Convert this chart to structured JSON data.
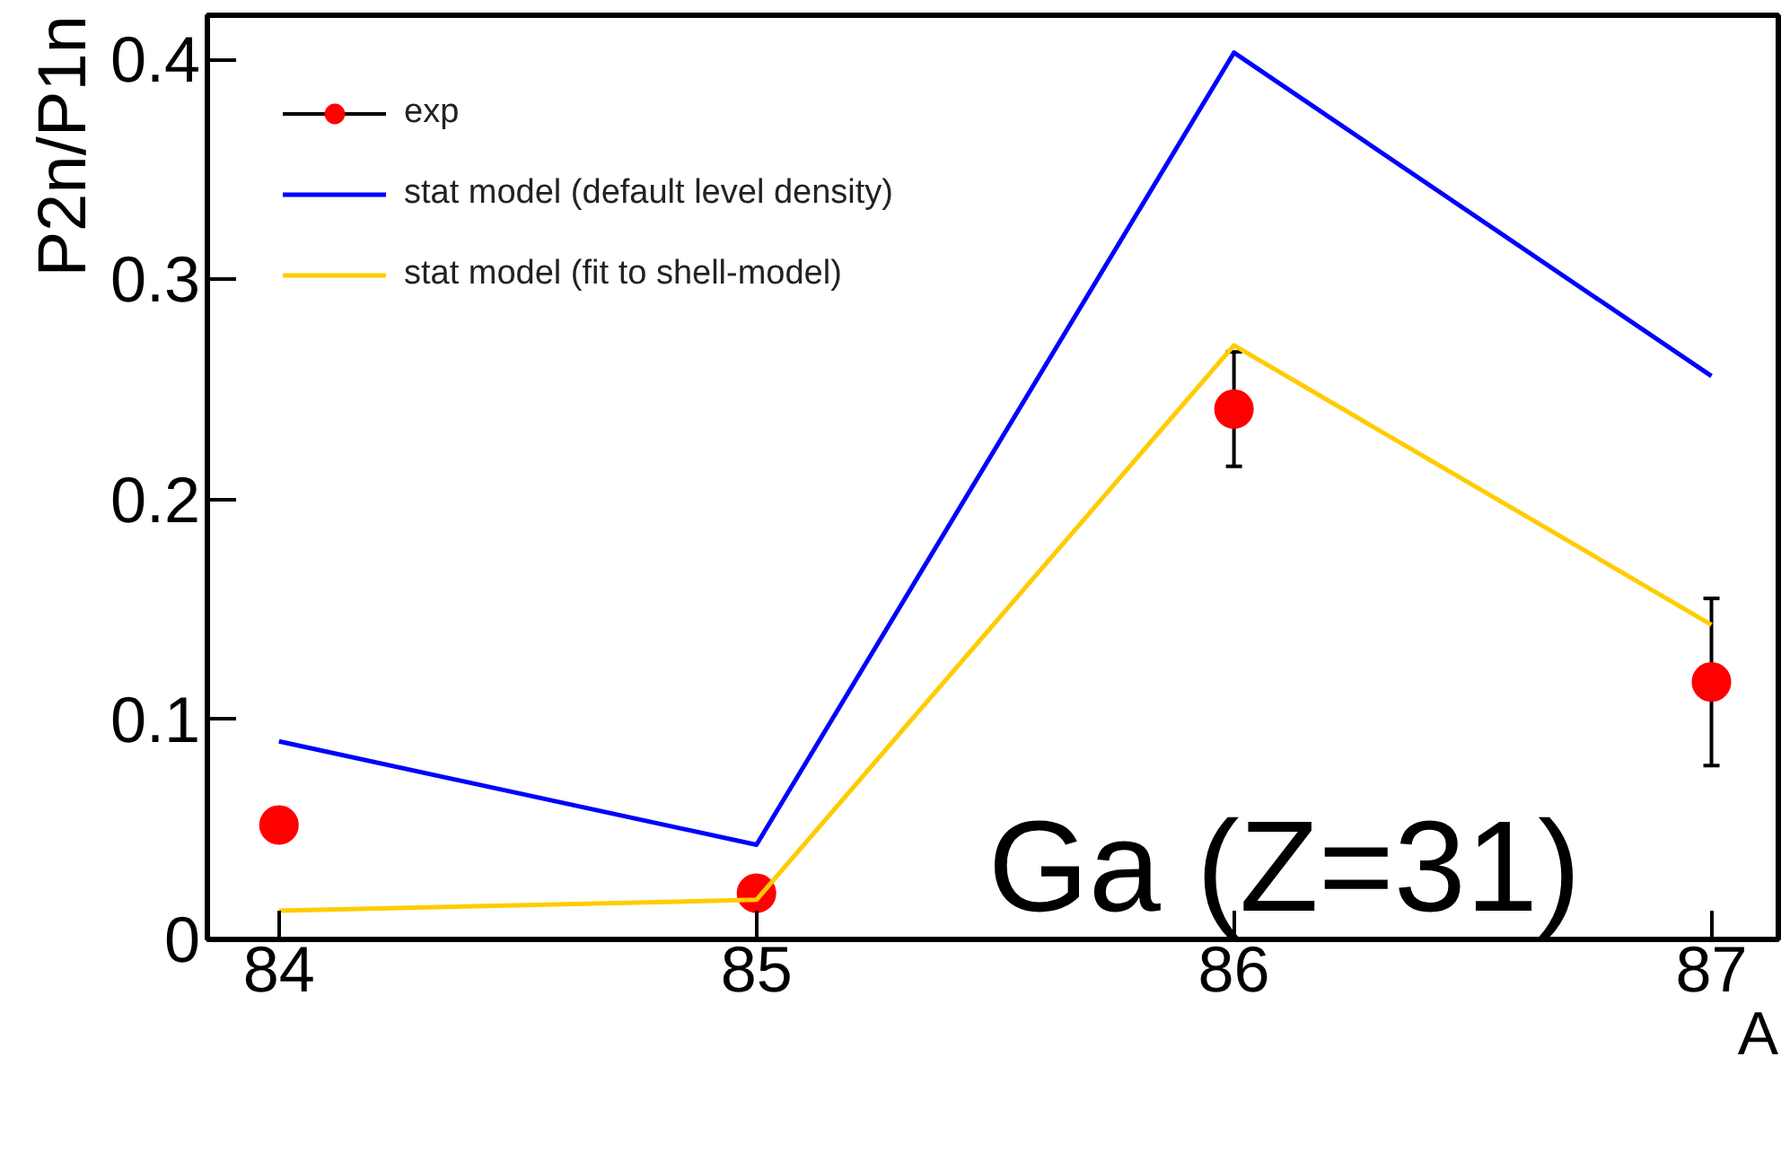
{
  "chart_data": {
    "type": "line",
    "xlabel": "A",
    "ylabel": "P2n/P1n",
    "x": [
      84,
      85,
      86,
      87
    ],
    "xlim": [
      83.85,
      87.14
    ],
    "xticks": [
      84,
      85,
      86,
      87
    ],
    "ylim": [
      0,
      0.42
    ],
    "yticks": [
      0,
      0.1,
      0.2,
      0.3,
      0.4
    ],
    "grid": false,
    "legend": "top left",
    "annotations": [
      "Ga (Z=31)"
    ],
    "series": [
      {
        "name": "exp",
        "type": "scatter",
        "color": "#ff0000",
        "marker": "circle",
        "values": [
          0.052,
          0.021,
          0.241,
          0.117
        ],
        "errors": [
          null,
          null,
          0.026,
          0.038
        ]
      },
      {
        "name": "stat model (default level density)",
        "color": "#0000ff",
        "values": [
          0.09,
          0.043,
          0.403,
          0.256
        ]
      },
      {
        "name": "stat model (fit to shell-model)",
        "color": "#ffcc00",
        "values": [
          0.013,
          0.018,
          0.27,
          0.143
        ]
      }
    ]
  }
}
